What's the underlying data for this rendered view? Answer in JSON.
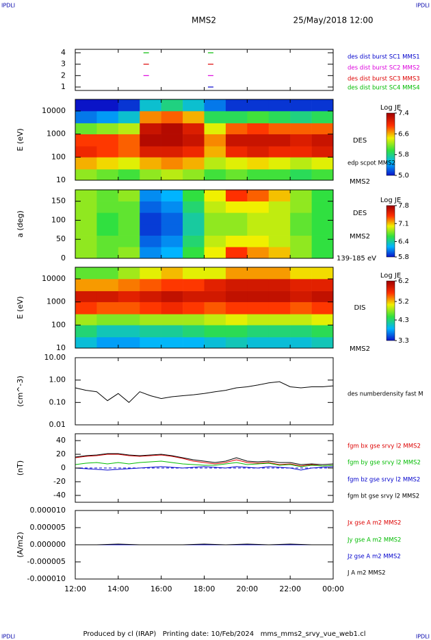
{
  "header": {
    "corner_label": "IPDLI",
    "spacecraft": "MMS2",
    "date": "25/May/2018 12:00"
  },
  "footer": "Produced by cl (IRAP)   Printing date: 10/Feb/2024   mms_mms2_srvy_vue_web1.cl",
  "chart_data": [
    {
      "type": "scatter",
      "xlim": [
        12,
        24
      ],
      "ylim": [
        0.7,
        4.3
      ],
      "yticks": [
        1,
        2,
        3,
        4
      ],
      "series": [
        {
          "name": "des dist burst SC1 MMS1",
          "color": "#0000cc",
          "x": [
            18.3
          ],
          "values": [
            1
          ]
        },
        {
          "name": "des dist burst SC2 MMS2",
          "color": "#dd00dd",
          "x": [
            15.3,
            18.3
          ],
          "values": [
            2,
            2
          ]
        },
        {
          "name": "des dist burst SC3 MMS3",
          "color": "#dd0000",
          "x": [
            15.3,
            18.3
          ],
          "values": [
            3,
            3
          ]
        },
        {
          "name": "des dist burst SC4 MMS4",
          "color": "#00bb00",
          "x": [
            15.3,
            18.3
          ],
          "values": [
            4,
            4
          ]
        }
      ]
    },
    {
      "type": "heatmap",
      "y_label": "E (eV)",
      "ylog": true,
      "xlim": [
        12,
        24
      ],
      "ylim": [
        10,
        32000
      ],
      "yticks": [
        10,
        100,
        1000,
        10000
      ],
      "x_edges": [
        12,
        13,
        14,
        15,
        16,
        17,
        18,
        19,
        20,
        21,
        22,
        23,
        24
      ],
      "y_edges": [
        10,
        30,
        100,
        300,
        1000,
        3000,
        10000,
        32000
      ],
      "z": [
        [
          6.2,
          6.1,
          6.0,
          6.2,
          6.3,
          6.2,
          6.0,
          6.1,
          6.0,
          6.0,
          5.9,
          6.0
        ],
        [
          6.6,
          6.5,
          6.4,
          6.6,
          6.7,
          6.6,
          6.3,
          6.4,
          6.5,
          6.4,
          6.3,
          6.4
        ],
        [
          7.0,
          6.9,
          6.8,
          7.1,
          7.1,
          7.0,
          6.6,
          7.0,
          7.1,
          7.0,
          7.0,
          7.1
        ],
        [
          6.9,
          6.9,
          6.8,
          7.3,
          7.3,
          7.2,
          6.7,
          7.2,
          7.2,
          7.2,
          7.1,
          7.2
        ],
        [
          6.1,
          6.2,
          6.3,
          7.2,
          7.3,
          7.1,
          6.4,
          6.8,
          6.9,
          6.8,
          6.8,
          6.8
        ],
        [
          5.3,
          5.4,
          5.6,
          6.7,
          6.8,
          6.6,
          5.9,
          5.9,
          6.0,
          5.9,
          5.8,
          5.9
        ],
        [
          5.0,
          5.0,
          5.1,
          5.6,
          5.8,
          5.6,
          5.3,
          5.1,
          5.1,
          5.1,
          5.1,
          5.1
        ]
      ],
      "colorbar_title": "Log JE",
      "zlim": [
        5.0,
        7.4
      ],
      "zticks": [
        {
          "value": 5.0,
          "label": "5.0"
        },
        5.8,
        6.6,
        7.4
      ],
      "annotations": [
        "DES",
        "edp scpot MMS2",
        "MMS2"
      ]
    },
    {
      "type": "heatmap",
      "y_label": "a (deg)",
      "xlim": [
        12,
        24
      ],
      "ylim": [
        0,
        180
      ],
      "yticks": [
        0,
        50,
        100,
        150
      ],
      "x_edges": [
        12,
        13,
        14,
        15,
        16,
        17,
        18,
        19,
        20,
        21,
        22,
        23,
        24
      ],
      "y_edges": [
        0,
        30,
        60,
        90,
        120,
        150,
        180
      ],
      "z": [
        [
          6.8,
          6.7,
          6.8,
          6.1,
          6.2,
          6.6,
          7.0,
          7.4,
          7.2,
          7.1,
          6.8,
          6.6
        ],
        [
          6.8,
          6.7,
          6.7,
          6.0,
          6.1,
          6.5,
          6.9,
          7.0,
          7.0,
          6.9,
          6.8,
          6.6
        ],
        [
          6.8,
          6.6,
          6.7,
          5.9,
          6.0,
          6.4,
          6.8,
          6.8,
          6.9,
          6.9,
          6.7,
          6.6
        ],
        [
          6.8,
          6.6,
          6.7,
          5.9,
          6.0,
          6.4,
          6.8,
          6.8,
          6.9,
          6.9,
          6.7,
          6.6
        ],
        [
          6.8,
          6.7,
          6.7,
          6.0,
          6.1,
          6.5,
          6.9,
          7.0,
          7.0,
          6.9,
          6.8,
          6.6
        ],
        [
          6.8,
          6.7,
          6.8,
          6.1,
          6.2,
          6.6,
          7.0,
          7.4,
          7.3,
          7.1,
          6.8,
          6.6
        ]
      ],
      "colorbar_title": "Log JE",
      "zlim": [
        5.8,
        7.8
      ],
      "zticks": [
        5.8,
        6.4,
        7.1,
        7.8
      ],
      "annotations": [
        "DES",
        "MMS2",
        "139-185 eV"
      ]
    },
    {
      "type": "heatmap",
      "y_label": "E (eV)",
      "ylog": true,
      "xlim": [
        12,
        24
      ],
      "ylim": [
        10,
        32000
      ],
      "yticks": [
        10,
        100,
        1000,
        10000
      ],
      "x_edges": [
        12,
        13,
        14,
        15,
        16,
        17,
        18,
        19,
        20,
        21,
        22,
        23,
        24
      ],
      "y_edges": [
        10,
        30,
        100,
        300,
        1000,
        3000,
        10000,
        32000
      ],
      "z": [
        [
          4.0,
          3.8,
          3.8,
          3.9,
          3.9,
          3.9,
          4.0,
          4.1,
          4.0,
          4.0,
          4.0,
          4.1
        ],
        [
          4.3,
          4.1,
          4.1,
          4.2,
          4.2,
          4.3,
          4.4,
          4.4,
          4.3,
          4.3,
          4.3,
          4.4
        ],
        [
          4.8,
          4.7,
          4.7,
          4.8,
          4.8,
          4.8,
          4.9,
          5.0,
          4.9,
          4.9,
          4.9,
          5.0
        ],
        [
          5.6,
          5.5,
          5.5,
          5.6,
          5.7,
          5.6,
          5.5,
          5.6,
          5.6,
          5.6,
          5.5,
          5.6
        ],
        [
          5.9,
          5.9,
          5.8,
          5.9,
          6.0,
          5.9,
          5.9,
          6.0,
          6.0,
          6.0,
          5.9,
          6.0
        ],
        [
          5.3,
          5.3,
          5.4,
          5.5,
          5.6,
          5.6,
          5.8,
          5.9,
          5.9,
          5.9,
          5.8,
          5.8
        ],
        [
          4.6,
          4.6,
          4.8,
          5.0,
          5.2,
          5.0,
          5.0,
          5.3,
          5.3,
          5.3,
          5.1,
          5.1
        ]
      ],
      "colorbar_title": "Log JE",
      "zlim": [
        3.3,
        6.2
      ],
      "zticks": [
        3.3,
        4.3,
        5.2,
        6.2
      ],
      "annotations": [
        "DIS",
        "MMS2"
      ]
    },
    {
      "type": "line",
      "y_label": "(cm^-3)",
      "ylog": true,
      "xlim": [
        12,
        24
      ],
      "ylim": [
        0.01,
        10
      ],
      "yticks": [
        {
          "value": 0.01,
          "label": "0.01"
        },
        {
          "value": 0.1,
          "label": "0.10"
        },
        {
          "value": 1,
          "label": "1.00"
        },
        {
          "value": 10,
          "label": "10.00"
        }
      ],
      "series": [
        {
          "name": "des numberdensity fast M",
          "color": "#000000",
          "x": [
            12,
            12.5,
            13,
            13.5,
            14,
            14.5,
            15,
            15.5,
            16,
            16.5,
            17,
            17.5,
            18,
            18.5,
            19,
            19.5,
            20,
            20.5,
            21,
            21.5,
            22,
            22.5,
            23,
            23.5,
            24
          ],
          "values": [
            0.45,
            0.35,
            0.3,
            0.12,
            0.25,
            0.1,
            0.3,
            0.2,
            0.15,
            0.18,
            0.2,
            0.22,
            0.25,
            0.3,
            0.35,
            0.45,
            0.5,
            0.6,
            0.75,
            0.85,
            0.5,
            0.45,
            0.5,
            0.5,
            0.55
          ]
        }
      ]
    },
    {
      "type": "line",
      "y_label": "(nT)",
      "xlim": [
        12,
        24
      ],
      "ylim": [
        -50,
        50
      ],
      "yticks": [
        -40,
        -20,
        0,
        20,
        40
      ],
      "zero_line": true,
      "series": [
        {
          "name": "fgm bx gse srvy l2 MMS2",
          "color": "#dd0000",
          "x": [
            12,
            12.5,
            13,
            13.5,
            14,
            14.5,
            15,
            15.5,
            16,
            16.5,
            17,
            17.5,
            18,
            18.5,
            19,
            19.5,
            20,
            20.5,
            21,
            21.5,
            22,
            22.5,
            23,
            23.5,
            24
          ],
          "values": [
            15,
            17,
            18,
            20,
            20,
            18,
            17,
            18,
            19,
            17,
            14,
            10,
            8,
            6,
            8,
            12,
            8,
            7,
            8,
            5,
            6,
            3,
            5,
            3,
            4
          ]
        },
        {
          "name": "fgm by gse srvy l2 MMS2",
          "color": "#00bb00",
          "x": [
            12,
            12.5,
            13,
            13.5,
            14,
            14.5,
            15,
            15.5,
            16,
            16.5,
            17,
            17.5,
            18,
            18.5,
            19,
            19.5,
            20,
            20.5,
            21,
            21.5,
            22,
            22.5,
            23,
            23.5,
            24
          ],
          "values": [
            5,
            7,
            8,
            6,
            8,
            6,
            8,
            9,
            10,
            8,
            6,
            5,
            4,
            4,
            6,
            8,
            5,
            6,
            7,
            4,
            5,
            2,
            4,
            3,
            4
          ]
        },
        {
          "name": "fgm bz gse srvy l2 MMS2",
          "color": "#0000cc",
          "x": [
            12,
            12.5,
            13,
            13.5,
            14,
            14.5,
            15,
            15.5,
            16,
            16.5,
            17,
            17.5,
            18,
            18.5,
            19,
            19.5,
            20,
            20.5,
            21,
            21.5,
            22,
            22.5,
            23,
            23.5,
            24
          ],
          "values": [
            0,
            -1,
            -2,
            -3,
            -2,
            -1,
            0,
            1,
            2,
            1,
            0,
            1,
            2,
            1,
            0,
            2,
            1,
            0,
            2,
            1,
            0,
            -3,
            0,
            1,
            2
          ]
        },
        {
          "name": "fgm bt gse srvy l2 MMS2",
          "color": "#000000",
          "x": [
            12,
            12.5,
            13,
            13.5,
            14,
            14.5,
            15,
            15.5,
            16,
            16.5,
            17,
            17.5,
            18,
            18.5,
            19,
            19.5,
            20,
            20.5,
            21,
            21.5,
            22,
            22.5,
            23,
            23.5,
            24
          ],
          "values": [
            16,
            18,
            19,
            21,
            21,
            19,
            18,
            19,
            20,
            18,
            15,
            12,
            10,
            8,
            10,
            15,
            10,
            9,
            10,
            8,
            8,
            5,
            6,
            5,
            6
          ]
        }
      ]
    },
    {
      "type": "line",
      "y_label": "(A/m2)",
      "xlim": [
        12,
        24
      ],
      "ylim": [
        -1e-05,
        1e-05
      ],
      "yticks": [
        {
          "value": -1e-05,
          "label": "-0.000010"
        },
        {
          "value": -5e-06,
          "label": "-0.000005"
        },
        {
          "value": 0,
          "label": "0.000000"
        },
        {
          "value": 5e-06,
          "label": "0.000005"
        },
        {
          "value": 1e-05,
          "label": "0.000010"
        }
      ],
      "xticks": [
        {
          "value": 12,
          "label": "12:00"
        },
        {
          "value": 14,
          "label": "14:00"
        },
        {
          "value": 16,
          "label": "16:00"
        },
        {
          "value": 18,
          "label": "18:00"
        },
        {
          "value": 20,
          "label": "20:00"
        },
        {
          "value": 22,
          "label": "22:00"
        },
        {
          "value": 24,
          "label": "00:00"
        }
      ],
      "series": [
        {
          "name": "Jx gse A m2 MMS2",
          "color": "#dd0000",
          "x": [
            12,
            13,
            14,
            15,
            16,
            17,
            18,
            19,
            20,
            21,
            22,
            23,
            24
          ],
          "values": [
            0,
            0,
            0,
            0,
            0,
            0,
            0,
            0,
            0,
            0,
            0,
            0,
            0
          ]
        },
        {
          "name": "Jy gse A m2 MMS2",
          "color": "#00bb00",
          "x": [
            12,
            13,
            14,
            15,
            16,
            17,
            18,
            19,
            20,
            21,
            22,
            23,
            24
          ],
          "values": [
            0,
            0,
            0,
            0,
            0,
            0,
            0,
            0,
            0,
            0,
            0,
            0,
            0
          ]
        },
        {
          "name": "Jz gse A m2 MMS2",
          "color": "#0000cc",
          "x": [
            12,
            13,
            14,
            15,
            16,
            17,
            18,
            19,
            20,
            21,
            22,
            23,
            24
          ],
          "values": [
            0,
            0,
            0,
            0,
            0,
            0,
            0,
            0,
            0,
            0,
            0,
            0,
            0
          ]
        },
        {
          "name": "J A m2 MMS2",
          "color": "#000000",
          "x": [
            12,
            13,
            14,
            15,
            16,
            17,
            18,
            19,
            20,
            21,
            22,
            23,
            24
          ],
          "values": [
            0,
            0,
            2e-07,
            0,
            0,
            0,
            2e-07,
            0,
            2e-07,
            0,
            2e-07,
            0,
            0
          ]
        }
      ]
    }
  ]
}
